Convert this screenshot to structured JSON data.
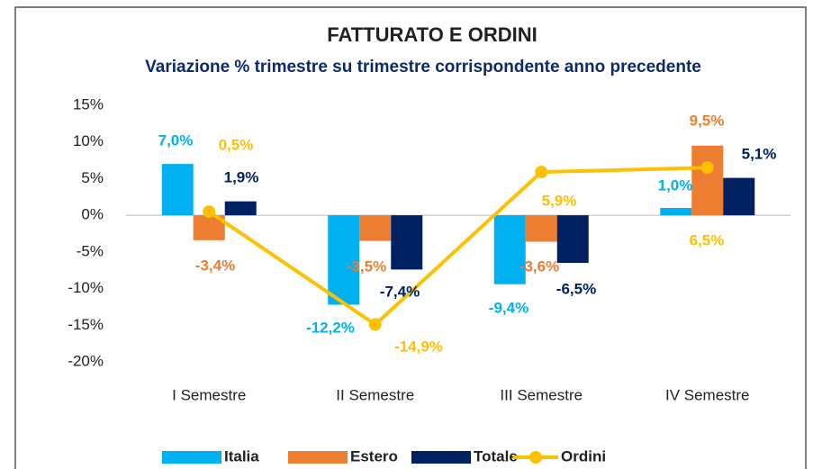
{
  "chart_data": {
    "type": "bar",
    "title": "FATTURATO E ORDINI",
    "subtitle": "Variazione % trimestre su trimestre corrispondente anno precedente",
    "categories": [
      "I Semestre",
      "II Semestre",
      "III Semestre",
      "IV Semestre"
    ],
    "series": [
      {
        "name": "Italia",
        "color": "#00b0f0",
        "values": [
          7.0,
          -12.2,
          -9.4,
          1.0
        ],
        "value_labels": [
          "7,0%",
          "-12,2%",
          "-9,4%",
          "1,0%"
        ]
      },
      {
        "name": "Estero",
        "color": "#ed7d31",
        "values": [
          -3.4,
          -3.5,
          -3.6,
          9.5
        ],
        "value_labels": [
          "-3,4%",
          "-3,5%",
          "-3,6%",
          "9,5%"
        ]
      },
      {
        "name": "Totale",
        "color": "#002060",
        "values": [
          1.9,
          -7.4,
          -6.5,
          5.1
        ],
        "value_labels": [
          "1,9%",
          "-7,4%",
          "-6,5%",
          "5,1%"
        ]
      },
      {
        "name": "Ordini",
        "color": "#ffc000",
        "type": "line",
        "values": [
          0.5,
          -14.9,
          5.9,
          6.5
        ],
        "value_labels": [
          "0,5%",
          "-14,9%",
          "5,9%",
          "6,5%"
        ]
      }
    ],
    "ylim": [
      -20,
      15
    ],
    "yticks": [
      {
        "value": 15,
        "label": "15%"
      },
      {
        "value": 10,
        "label": "10%"
      },
      {
        "value": 5,
        "label": "5%"
      },
      {
        "value": 0,
        "label": "0%"
      },
      {
        "value": -5,
        "label": "-5%"
      },
      {
        "value": -10,
        "label": "-10%"
      },
      {
        "value": -15,
        "label": "-15%"
      },
      {
        "value": -20,
        "label": "-20%"
      }
    ],
    "legend": "bottom",
    "grid": false
  }
}
